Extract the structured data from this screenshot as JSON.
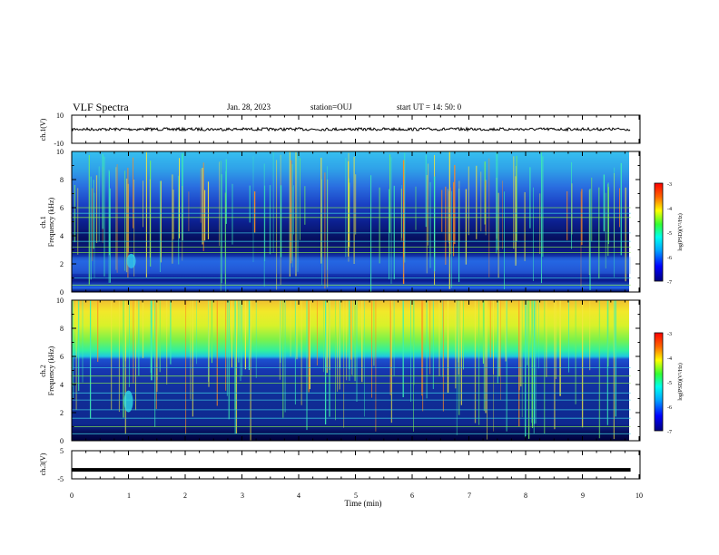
{
  "header": {
    "title": "VLF Spectra",
    "date": "Jan. 28, 2023",
    "station": "station=OUJ",
    "start_ut": "start UT =  14: 50: 0"
  },
  "chart_data": [
    {
      "type": "line",
      "panel": "waveform-ch1",
      "ylabel": "ch.1(V)",
      "yticks": [
        "10",
        "-10"
      ],
      "ylim": [
        -10,
        10
      ],
      "baseline_value": 0,
      "color": "#000000"
    },
    {
      "type": "heatmap",
      "panel": "spectrogram-ch1",
      "ylabel_line1": "ch.1",
      "ylabel_line2": "Frequency (kHz)",
      "ylim": [
        0,
        10
      ],
      "yticks": [
        "0",
        "2",
        "4",
        "6",
        "8",
        "10"
      ],
      "colorbar": {
        "label": "log(PSD)(V²/Hz)",
        "range": [
          -7,
          -3
        ],
        "ticks": [
          "-3",
          "-4",
          "-5",
          "-6",
          "-7"
        ]
      },
      "features": {
        "horizontal_lines_khz": [
          0.5,
          1.0,
          2.8,
          3.2,
          3.6,
          4.2,
          5.3,
          5.6,
          6.0
        ],
        "burst_near_min": 1.05,
        "emission_band_khz": [
          1.3,
          2.5
        ]
      }
    },
    {
      "type": "heatmap",
      "panel": "spectrogram-ch2",
      "ylabel_line1": "ch.2",
      "ylabel_line2": "Frequency (kHz)",
      "ylim": [
        0,
        10
      ],
      "yticks": [
        "0",
        "2",
        "4",
        "6",
        "8",
        "10"
      ],
      "colorbar": {
        "label": "log(PSD)(V²/Hz)",
        "range": [
          -7,
          -3
        ],
        "ticks": [
          "-3",
          "-4",
          "-5",
          "-6",
          "-7"
        ]
      },
      "features": {
        "high_band_khz": [
          6.0,
          10.0
        ],
        "burst_near_min": 1.0
      }
    },
    {
      "type": "line",
      "panel": "waveform-ch3",
      "ylabel": "ch.3(V)",
      "yticks": [
        "5",
        "-5"
      ],
      "ylim": [
        -5,
        5
      ],
      "baseline_value": -1.8,
      "color": "#000000"
    }
  ],
  "xaxis": {
    "label": "Time (min)",
    "range": [
      0,
      10
    ],
    "ticks": [
      "0",
      "1",
      "2",
      "3",
      "4",
      "5",
      "6",
      "7",
      "8",
      "9",
      "10"
    ],
    "data_end_min": 9.85
  }
}
